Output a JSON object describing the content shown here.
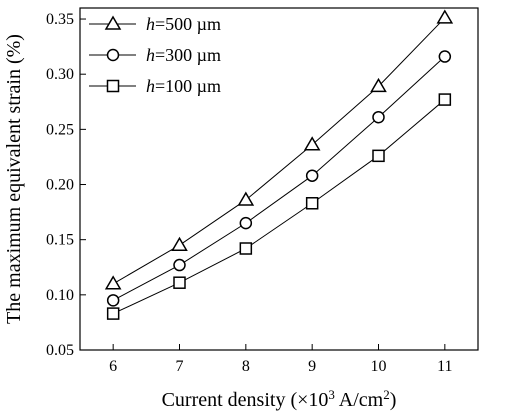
{
  "chart_data": {
    "type": "line",
    "title": "",
    "xlabel": "Current density (×10",
    "xlabel_sup": "3",
    "xlabel_unit": " A/cm",
    "xlabel_unit_sup": "2",
    "xlabel_end": ")",
    "ylabel": "The maximum equivalent strain (%)",
    "x": [
      6,
      7,
      8,
      9,
      10,
      11
    ],
    "xlim": [
      5.5,
      11.5
    ],
    "ylim": [
      0.05,
      0.36
    ],
    "x_ticks": [
      6,
      7,
      8,
      9,
      10,
      11
    ],
    "x_tick_labels": [
      "6",
      "7",
      "8",
      "9",
      "10",
      "11"
    ],
    "y_ticks": [
      0.05,
      0.1,
      0.15,
      0.2,
      0.25,
      0.3,
      0.35
    ],
    "y_tick_labels": [
      "0.05",
      "0.10",
      "0.15",
      "0.20",
      "0.25",
      "0.30",
      "0.35"
    ],
    "grid": false,
    "legend_position": "top-left",
    "series": [
      {
        "name": "h=500 µm",
        "name_italic": "h",
        "name_rest": "=500 µm",
        "marker": "triangle",
        "values": [
          0.11,
          0.145,
          0.186,
          0.236,
          0.289,
          0.351
        ]
      },
      {
        "name": "h=300 µm",
        "name_italic": "h",
        "name_rest": "=300 µm",
        "marker": "circle",
        "values": [
          0.095,
          0.127,
          0.165,
          0.208,
          0.261,
          0.316
        ]
      },
      {
        "name": "h=100 µm",
        "name_italic": "h",
        "name_rest": "=100 µm",
        "marker": "square",
        "values": [
          0.083,
          0.111,
          0.142,
          0.183,
          0.226,
          0.277
        ]
      }
    ]
  }
}
